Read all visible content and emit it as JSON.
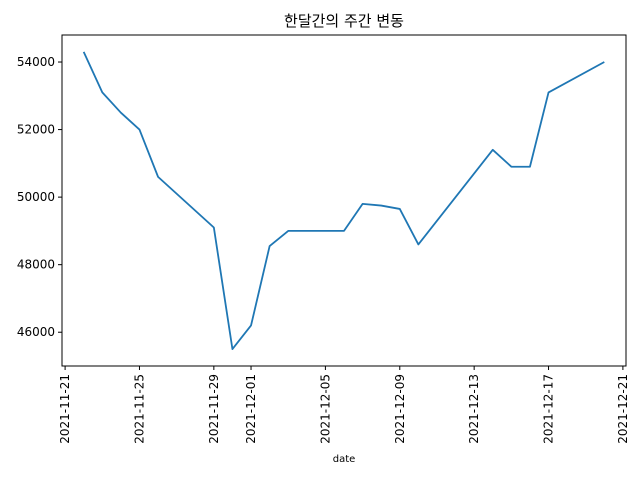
{
  "chart_data": {
    "type": "line",
    "title": "한달간의 주간 변동",
    "xlabel": "date",
    "ylabel": "",
    "grid": false,
    "legend": "none",
    "line_color": "#1f77b4",
    "xlim": [
      "2021-11-20T20:00",
      "2021-12-21T04:00"
    ],
    "ylim": [
      45000,
      54800
    ],
    "x_ticks": [
      "2021-11-21",
      "2021-11-25",
      "2021-11-29",
      "2021-12-01",
      "2021-12-05",
      "2021-12-09",
      "2021-12-13",
      "2021-12-17",
      "2021-12-21"
    ],
    "y_ticks": [
      46000,
      48000,
      50000,
      52000,
      54000
    ],
    "series": [
      {
        "x": [
          "2021-11-22",
          "2021-11-23",
          "2021-11-24",
          "2021-11-25",
          "2021-11-26",
          "2021-11-29",
          "2021-11-30",
          "2021-12-01",
          "2021-12-02",
          "2021-12-03",
          "2021-12-06",
          "2021-12-07",
          "2021-12-08",
          "2021-12-09",
          "2021-12-10",
          "2021-12-14",
          "2021-12-15",
          "2021-12-16",
          "2021-12-17",
          "2021-12-20"
        ],
        "values": [
          54300,
          53100,
          52500,
          52000,
          50600,
          49100,
          45500,
          46200,
          48550,
          49000,
          49000,
          49800,
          49750,
          49650,
          48600,
          51400,
          50900,
          50900,
          53100,
          54000
        ]
      }
    ]
  }
}
